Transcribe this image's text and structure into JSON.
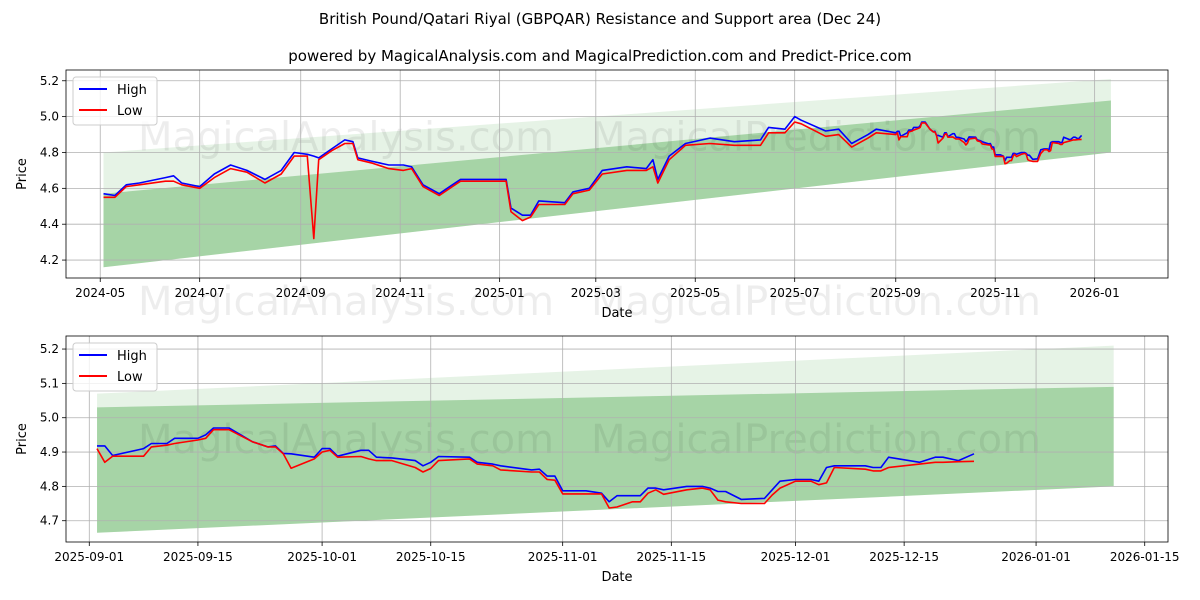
{
  "title": "British Pound/Qatari Riyal (GBPQAR) Resistance and Support area (Dec 24)",
  "subtitle": "powered by MagicalAnalysis.com and MagicalPrediction.com and Predict-Price.com",
  "watermarks": [
    "MagicalAnalysis.com",
    "MagicalPrediction.com"
  ],
  "colors": {
    "high": "#0000ff",
    "low": "#ff0000",
    "band": "#2e9a2e"
  },
  "chart_data": [
    {
      "type": "line",
      "xlabel": "Date",
      "ylabel": "Price",
      "xlim": [
        "2024-04-10",
        "2026-02-15"
      ],
      "ylim": [
        4.1,
        5.26
      ],
      "grid": true,
      "legend": {
        "position": "top-left",
        "entries": [
          "High",
          "Low"
        ]
      },
      "xticks": [
        "2024-05",
        "2024-07",
        "2024-09",
        "2024-11",
        "2025-01",
        "2025-03",
        "2025-05",
        "2025-07",
        "2025-09",
        "2025-11",
        "2026-01"
      ],
      "yticks": [
        "4.2",
        "4.4",
        "4.6",
        "4.8",
        "5.0",
        "5.2"
      ],
      "bands": [
        {
          "start": "2024-05-03",
          "end": "2026-01-11",
          "lower": [
            4.16,
            4.8
          ],
          "upper": [
            4.8,
            5.21
          ],
          "opacity": 0.12
        },
        {
          "start": "2024-05-03",
          "end": "2026-01-11",
          "lower": [
            4.16,
            4.8
          ],
          "upper": [
            4.57,
            5.09
          ],
          "opacity": 0.35
        }
      ],
      "series_source": "history+recent"
    },
    {
      "type": "line",
      "xlabel": "Date",
      "ylabel": "Price",
      "xlim": [
        "2025-08-29",
        "2026-01-18"
      ],
      "ylim": [
        4.638,
        5.238
      ],
      "grid": true,
      "legend": {
        "position": "top-left",
        "entries": [
          "High",
          "Low"
        ]
      },
      "xticks": [
        "2025-09-01",
        "2025-09-15",
        "2025-10-01",
        "2025-10-15",
        "2025-11-01",
        "2025-11-15",
        "2025-12-01",
        "2025-12-15",
        "2026-01-01",
        "2026-01-15"
      ],
      "yticks": [
        "4.7",
        "4.8",
        "4.9",
        "5.0",
        "5.1",
        "5.2"
      ],
      "bands": [
        {
          "start": "2025-09-02",
          "end": "2026-01-11",
          "lower": [
            4.665,
            4.8
          ],
          "upper": [
            5.07,
            5.21
          ],
          "opacity": 0.12
        },
        {
          "start": "2025-09-02",
          "end": "2026-01-11",
          "lower": [
            4.665,
            4.8
          ],
          "upper": [
            5.03,
            5.09
          ],
          "opacity": 0.35
        }
      ],
      "series_source": "recent"
    }
  ],
  "history": [
    [
      "2024-05-03",
      4.57,
      4.55
    ],
    [
      "2024-05-10",
      4.56,
      4.55
    ],
    [
      "2024-05-17",
      4.62,
      4.61
    ],
    [
      "2024-05-25",
      4.63,
      4.62
    ],
    [
      "2024-06-10",
      4.66,
      4.64
    ],
    [
      "2024-06-15",
      4.67,
      4.64
    ],
    [
      "2024-06-20",
      4.63,
      4.62
    ],
    [
      "2024-07-01",
      4.61,
      4.6
    ],
    [
      "2024-07-10",
      4.68,
      4.66
    ],
    [
      "2024-07-20",
      4.73,
      4.71
    ],
    [
      "2024-07-30",
      4.7,
      4.69
    ],
    [
      "2024-08-10",
      4.65,
      4.63
    ],
    [
      "2024-08-20",
      4.7,
      4.68
    ],
    [
      "2024-08-28",
      4.8,
      4.78
    ],
    [
      "2024-09-05",
      4.79,
      4.78
    ],
    [
      "2024-09-09",
      4.78,
      4.32
    ],
    [
      "2024-09-12",
      4.77,
      4.76
    ],
    [
      "2024-09-20",
      4.82,
      4.81
    ],
    [
      "2024-09-28",
      4.87,
      4.85
    ],
    [
      "2024-10-03",
      4.86,
      4.85
    ],
    [
      "2024-10-06",
      4.77,
      4.76
    ],
    [
      "2024-10-15",
      4.75,
      4.74
    ],
    [
      "2024-10-25",
      4.73,
      4.71
    ],
    [
      "2024-11-03",
      4.73,
      4.7
    ],
    [
      "2024-11-08",
      4.72,
      4.71
    ],
    [
      "2024-11-15",
      4.62,
      4.61
    ],
    [
      "2024-11-25",
      4.57,
      4.56
    ],
    [
      "2024-12-03",
      4.62,
      4.61
    ],
    [
      "2024-12-08",
      4.65,
      4.64
    ],
    [
      "2025-01-05",
      4.65,
      4.64
    ],
    [
      "2025-01-08",
      4.49,
      4.47
    ],
    [
      "2025-01-15",
      4.45,
      4.42
    ],
    [
      "2025-01-20",
      4.45,
      4.44
    ],
    [
      "2025-01-25",
      4.53,
      4.51
    ],
    [
      "2025-02-10",
      4.52,
      4.51
    ],
    [
      "2025-02-15",
      4.58,
      4.57
    ],
    [
      "2025-02-25",
      4.6,
      4.59
    ],
    [
      "2025-03-05",
      4.7,
      4.68
    ],
    [
      "2025-03-20",
      4.72,
      4.7
    ],
    [
      "2025-04-01",
      4.71,
      4.7
    ],
    [
      "2025-04-05",
      4.76,
      4.72
    ],
    [
      "2025-04-08",
      4.65,
      4.63
    ],
    [
      "2025-04-15",
      4.78,
      4.76
    ],
    [
      "2025-04-25",
      4.85,
      4.84
    ],
    [
      "2025-05-10",
      4.88,
      4.85
    ],
    [
      "2025-05-25",
      4.86,
      4.84
    ],
    [
      "2025-06-10",
      4.87,
      4.84
    ],
    [
      "2025-06-15",
      4.94,
      4.91
    ],
    [
      "2025-06-25",
      4.93,
      4.91
    ],
    [
      "2025-07-01",
      5.0,
      4.97
    ],
    [
      "2025-07-05",
      4.98,
      4.96
    ],
    [
      "2025-07-20",
      4.92,
      4.89
    ],
    [
      "2025-07-28",
      4.93,
      4.9
    ],
    [
      "2025-08-05",
      4.85,
      4.83
    ],
    [
      "2025-08-15",
      4.9,
      4.88
    ],
    [
      "2025-08-20",
      4.93,
      4.91
    ],
    [
      "2025-09-01",
      4.91,
      4.9
    ]
  ],
  "recent": [
    [
      "2025-09-02",
      4.918,
      4.91
    ],
    [
      "2025-09-03",
      4.918,
      4.87
    ],
    [
      "2025-09-04",
      4.89,
      4.888
    ],
    [
      "2025-09-08",
      4.91,
      4.888
    ],
    [
      "2025-09-09",
      4.925,
      4.915
    ],
    [
      "2025-09-11",
      4.925,
      4.92
    ],
    [
      "2025-09-12",
      4.94,
      4.925
    ],
    [
      "2025-09-15",
      4.94,
      4.935
    ],
    [
      "2025-09-16",
      4.95,
      4.94
    ],
    [
      "2025-09-17",
      4.97,
      4.965
    ],
    [
      "2025-09-19",
      4.97,
      4.965
    ],
    [
      "2025-09-22",
      4.93,
      4.93
    ],
    [
      "2025-09-24",
      4.915,
      4.915
    ],
    [
      "2025-09-25",
      4.918,
      4.915
    ],
    [
      "2025-09-26",
      4.896,
      4.895
    ],
    [
      "2025-09-27",
      4.895,
      4.853
    ],
    [
      "2025-09-30",
      4.885,
      4.88
    ],
    [
      "2025-10-01",
      4.91,
      4.9
    ],
    [
      "2025-10-02",
      4.91,
      4.905
    ],
    [
      "2025-10-03",
      4.888,
      4.885
    ],
    [
      "2025-10-06",
      4.905,
      4.887
    ],
    [
      "2025-10-07",
      4.905,
      4.88
    ],
    [
      "2025-10-08",
      4.885,
      4.875
    ],
    [
      "2025-10-10",
      4.883,
      4.875
    ],
    [
      "2025-10-13",
      4.875,
      4.855
    ],
    [
      "2025-10-14",
      4.86,
      4.842
    ],
    [
      "2025-10-15",
      4.87,
      4.852
    ],
    [
      "2025-10-16",
      4.887,
      4.875
    ],
    [
      "2025-10-20",
      4.885,
      4.88
    ],
    [
      "2025-10-21",
      4.87,
      4.865
    ],
    [
      "2025-10-23",
      4.865,
      4.86
    ],
    [
      "2025-10-24",
      4.86,
      4.848
    ],
    [
      "2025-10-28",
      4.848,
      4.842
    ],
    [
      "2025-10-29",
      4.85,
      4.842
    ],
    [
      "2025-10-30",
      4.83,
      4.82
    ],
    [
      "2025-10-31",
      4.83,
      4.818
    ],
    [
      "2025-11-01",
      4.787,
      4.778
    ],
    [
      "2025-11-04",
      4.787,
      4.778
    ],
    [
      "2025-11-06",
      4.78,
      4.778
    ],
    [
      "2025-11-07",
      4.755,
      4.737
    ],
    [
      "2025-11-08",
      4.773,
      4.74
    ],
    [
      "2025-11-10",
      4.773,
      4.755
    ],
    [
      "2025-11-11",
      4.773,
      4.755
    ],
    [
      "2025-11-12",
      4.795,
      4.78
    ],
    [
      "2025-11-13",
      4.795,
      4.79
    ],
    [
      "2025-11-14",
      4.79,
      4.777
    ],
    [
      "2025-11-17",
      4.8,
      4.79
    ],
    [
      "2025-11-19",
      4.8,
      4.795
    ],
    [
      "2025-11-20",
      4.795,
      4.79
    ],
    [
      "2025-11-21",
      4.785,
      4.76
    ],
    [
      "2025-11-22",
      4.785,
      4.755
    ],
    [
      "2025-11-24",
      4.762,
      4.75
    ],
    [
      "2025-11-27",
      4.765,
      4.75
    ],
    [
      "2025-11-28",
      4.79,
      4.775
    ],
    [
      "2025-11-29",
      4.815,
      4.795
    ],
    [
      "2025-12-01",
      4.82,
      4.815
    ],
    [
      "2025-12-03",
      4.82,
      4.815
    ],
    [
      "2025-12-04",
      4.815,
      4.805
    ],
    [
      "2025-12-05",
      4.855,
      4.81
    ],
    [
      "2025-12-06",
      4.86,
      4.855
    ],
    [
      "2025-12-10",
      4.86,
      4.85
    ],
    [
      "2025-12-11",
      4.855,
      4.845
    ],
    [
      "2025-12-12",
      4.855,
      4.845
    ],
    [
      "2025-12-13",
      4.885,
      4.855
    ],
    [
      "2025-12-17",
      4.87,
      4.865
    ],
    [
      "2025-12-19",
      4.885,
      4.87
    ],
    [
      "2025-12-20",
      4.885,
      4.87
    ],
    [
      "2025-12-22",
      4.875,
      4.872
    ],
    [
      "2025-12-24",
      4.895,
      4.873
    ]
  ]
}
